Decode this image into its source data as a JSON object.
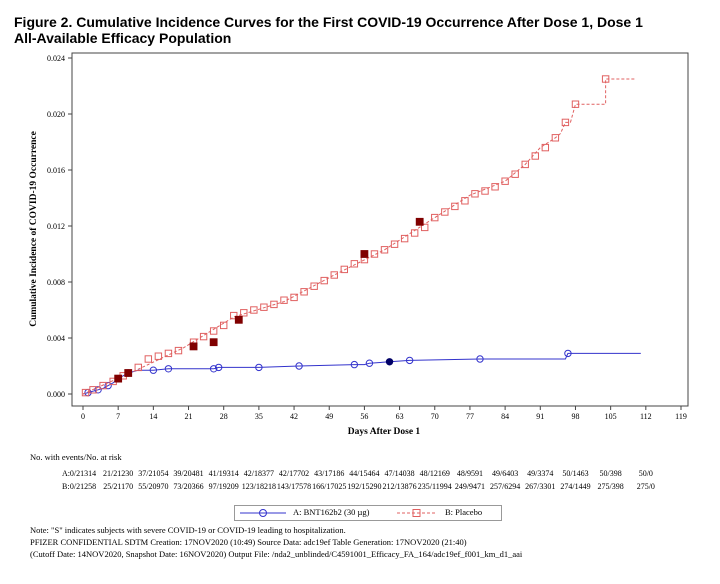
{
  "title_line1": "Figure 2. Cumulative Incidence Curves for the First COVID-19 Occurrence After Dose 1, Dose 1",
  "title_line2": "All-Available Efficacy Population",
  "chart_data": {
    "type": "line",
    "xlabel": "Days After Dose 1",
    "ylabel": "Cumulative Incidence of COVID-19 Occurrence",
    "xlim": [
      0,
      119
    ],
    "ylim": [
      0,
      0.024
    ],
    "xticks": [
      0,
      7,
      14,
      21,
      28,
      35,
      42,
      49,
      56,
      63,
      70,
      77,
      84,
      91,
      98,
      105,
      112,
      119
    ],
    "yticks": [
      "0.000",
      "0.004",
      "0.008",
      "0.012",
      "0.016",
      "0.020",
      "0.024"
    ],
    "series": [
      {
        "name": "A: BNT162b2 (30 µg)",
        "color": "#3333cc",
        "style": "solid",
        "marker": "circle",
        "points": [
          [
            0,
            0
          ],
          [
            1,
            0.0001
          ],
          [
            2,
            0.0002
          ],
          [
            3,
            0.0003
          ],
          [
            4,
            0.0004
          ],
          [
            5,
            0.0006
          ],
          [
            6,
            0.0008
          ],
          [
            7,
            0.0011
          ],
          [
            8,
            0.0013
          ],
          [
            9,
            0.0015
          ],
          [
            10,
            0.0016
          ],
          [
            11,
            0.0017
          ],
          [
            12,
            0.0017
          ],
          [
            14,
            0.0017
          ],
          [
            17,
            0.0018
          ],
          [
            26,
            0.0018
          ],
          [
            27,
            0.0019
          ],
          [
            35,
            0.0019
          ],
          [
            43,
            0.002
          ],
          [
            54,
            0.0021
          ],
          [
            56,
            0.0021
          ],
          [
            57,
            0.0022
          ],
          [
            61,
            0.0023
          ],
          [
            65,
            0.0024
          ],
          [
            79,
            0.0025
          ],
          [
            96,
            0.0025
          ],
          [
            96.5,
            0.0029
          ],
          [
            111,
            0.0029
          ]
        ],
        "markers": [
          [
            1,
            0.0001
          ],
          [
            3,
            0.0003
          ],
          [
            5,
            0.0006
          ],
          [
            9,
            0.0015
          ],
          [
            14,
            0.0017
          ],
          [
            17,
            0.0018
          ],
          [
            26,
            0.0018
          ],
          [
            27,
            0.0019
          ],
          [
            35,
            0.0019
          ],
          [
            43,
            0.002
          ],
          [
            54,
            0.0021
          ],
          [
            57,
            0.0022
          ],
          [
            65,
            0.0024
          ],
          [
            79,
            0.0025
          ],
          [
            96.5,
            0.0029
          ]
        ],
        "severe": [
          [
            61,
            0.0023
          ]
        ]
      },
      {
        "name": "B: Placebo",
        "color": "#e06060",
        "style": "dashed",
        "marker": "square",
        "points": [
          [
            0,
            0
          ],
          [
            10,
            0.0016
          ],
          [
            20,
            0.0033
          ],
          [
            30,
            0.0055
          ],
          [
            40,
            0.0066
          ],
          [
            50,
            0.0085
          ],
          [
            60,
            0.0103
          ],
          [
            70,
            0.0126
          ],
          [
            77,
            0.0142
          ],
          [
            84,
            0.0152
          ],
          [
            88,
            0.0164
          ],
          [
            91,
            0.0176
          ],
          [
            94,
            0.0183
          ],
          [
            95,
            0.0186
          ],
          [
            96,
            0.0194
          ],
          [
            97,
            0.0194
          ],
          [
            98,
            0.0207
          ],
          [
            104,
            0.0207
          ],
          [
            104,
            0.0225
          ],
          [
            110,
            0.0225
          ]
        ],
        "markers": [
          [
            0.5,
            0.0001
          ],
          [
            2,
            0.0003
          ],
          [
            4,
            0.0006
          ],
          [
            6,
            0.0009
          ],
          [
            8,
            0.0013
          ],
          [
            11,
            0.0019
          ],
          [
            13,
            0.0025
          ],
          [
            15,
            0.0027
          ],
          [
            17,
            0.0029
          ],
          [
            19,
            0.0031
          ],
          [
            22,
            0.0037
          ],
          [
            24,
            0.0041
          ],
          [
            26,
            0.0045
          ],
          [
            28,
            0.0049
          ],
          [
            30,
            0.0056
          ],
          [
            32,
            0.0058
          ],
          [
            34,
            0.006
          ],
          [
            36,
            0.0062
          ],
          [
            38,
            0.0064
          ],
          [
            40,
            0.0067
          ],
          [
            42,
            0.0069
          ],
          [
            44,
            0.0073
          ],
          [
            46,
            0.0077
          ],
          [
            48,
            0.0081
          ],
          [
            50,
            0.0085
          ],
          [
            52,
            0.0089
          ],
          [
            54,
            0.0093
          ],
          [
            56,
            0.0096
          ],
          [
            58,
            0.01
          ],
          [
            60,
            0.0103
          ],
          [
            62,
            0.0107
          ],
          [
            64,
            0.0111
          ],
          [
            66,
            0.0115
          ],
          [
            68,
            0.0119
          ],
          [
            70,
            0.0126
          ],
          [
            72,
            0.013
          ],
          [
            74,
            0.0134
          ],
          [
            76,
            0.0138
          ],
          [
            78,
            0.0143
          ],
          [
            80,
            0.0145
          ],
          [
            82,
            0.0148
          ],
          [
            84,
            0.0152
          ],
          [
            86,
            0.0157
          ],
          [
            88,
            0.0164
          ],
          [
            90,
            0.017
          ],
          [
            92,
            0.0176
          ],
          [
            94,
            0.0183
          ],
          [
            96,
            0.0194
          ],
          [
            98,
            0.0207
          ],
          [
            104,
            0.0225
          ]
        ],
        "severe": [
          [
            7,
            0.0011
          ],
          [
            9,
            0.0015
          ],
          [
            22,
            0.0034
          ],
          [
            26,
            0.0037
          ],
          [
            31,
            0.0053
          ],
          [
            56,
            0.01
          ],
          [
            67,
            0.0123
          ]
        ]
      }
    ]
  },
  "risk_table": {
    "header": "No. with events/No. at risk",
    "rows": [
      {
        "label": "A:",
        "values": [
          "0/21314",
          "21/21230",
          "37/21054",
          "39/20481",
          "41/19314",
          "42/18377",
          "42/17702",
          "43/17186",
          "44/15464",
          "47/14038",
          "48/12169",
          "48/9591",
          "49/6403",
          "49/3374",
          "50/1463",
          "50/398",
          "50/0"
        ]
      },
      {
        "label": "B:",
        "values": [
          "0/21258",
          "25/21170",
          "55/20970",
          "73/20366",
          "97/19209",
          "123/18218",
          "143/17578",
          "166/17025",
          "192/15290",
          "212/13876",
          "235/11994",
          "249/9471",
          "257/6294",
          "267/3301",
          "274/1449",
          "275/398",
          "275/0"
        ]
      }
    ]
  },
  "legend": {
    "a_label": "A: BNT162b2 (30 µg)",
    "b_label": "B: Placebo"
  },
  "notes": {
    "line1": "Note: \"S\" indicates subjects with severe COVID-19 or COVID-19 leading to hospitalization.",
    "line2": "PFIZER CONFIDENTIAL  SDTM Creation: 17NOV2020 (10:49)  Source Data: adc19ef  Table Generation: 17NOV2020 (21:40)",
    "line3": "(Cutoff Date: 14NOV2020, Snapshot Date: 16NOV2020) Output File: /nda2_unblinded/C4591001_Efficacy_FA_164/adc19ef_f001_km_d1_aai"
  }
}
